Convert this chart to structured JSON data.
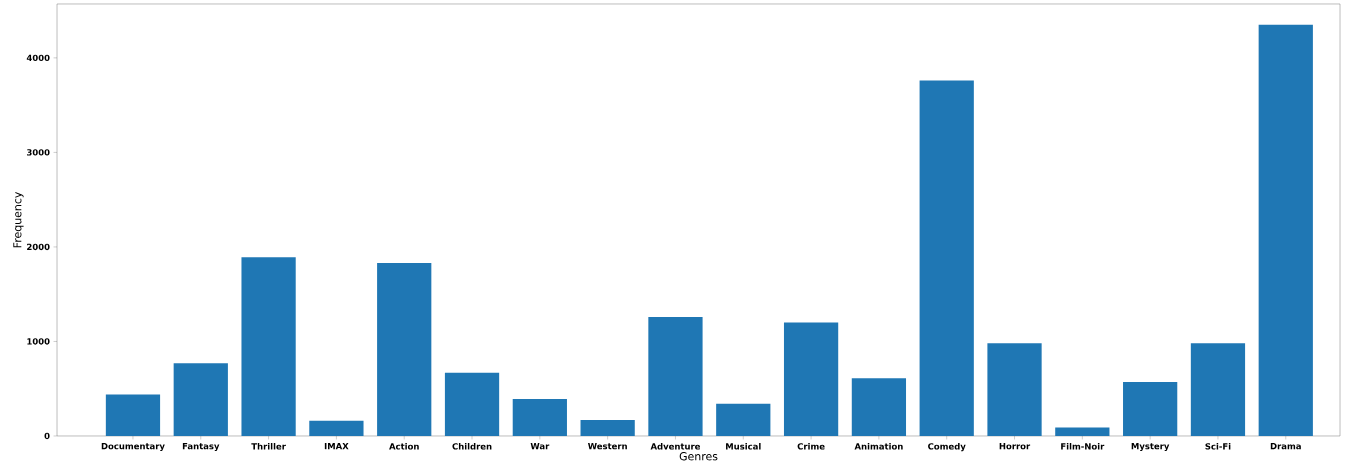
{
  "chart_data": {
    "type": "bar",
    "xlabel": "Genres",
    "ylabel": "Frequency",
    "categories": [
      "Documentary",
      "Fantasy",
      "Thriller",
      "IMAX",
      "Action",
      "Children",
      "War",
      "Western",
      "Adventure",
      "Musical",
      "Crime",
      "Animation",
      "Comedy",
      "Horror",
      "Film-Noir",
      "Mystery",
      "Sci-Fi",
      "Drama"
    ],
    "values": [
      440,
      770,
      1890,
      160,
      1830,
      670,
      390,
      170,
      1260,
      340,
      1200,
      610,
      3760,
      980,
      90,
      570,
      980,
      4350
    ],
    "color": "#1f77b4",
    "ylim": [
      0,
      4570
    ],
    "yticks": [
      0,
      1000,
      2000,
      3000,
      4000
    ],
    "grid": false
  }
}
